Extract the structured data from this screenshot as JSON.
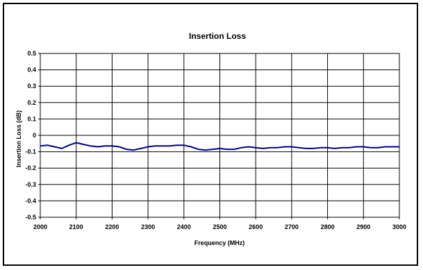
{
  "chart_data": {
    "type": "line",
    "title": "Insertion Loss",
    "xlabel": "Frequency (MHz)",
    "ylabel": "Insertion Loss (dB)",
    "xlim": [
      2000,
      3000
    ],
    "ylim": [
      -0.5,
      0.5
    ],
    "x_ticks": [
      "2000",
      "2100",
      "2200",
      "2300",
      "2400",
      "2500",
      "2600",
      "2700",
      "2800",
      "2900",
      "3000"
    ],
    "y_ticks": [
      "0.5",
      "0.4",
      "0.3",
      "0.2",
      "0.1",
      "0",
      "-0.1",
      "-0.2",
      "-0.3",
      "-0.4",
      "-0.5"
    ],
    "grid": true,
    "line_color": "#00008b",
    "series": [
      {
        "x": [
          2000,
          2020,
          2040,
          2060,
          2080,
          2100,
          2120,
          2140,
          2160,
          2180,
          2200,
          2220,
          2240,
          2260,
          2280,
          2300,
          2320,
          2340,
          2360,
          2380,
          2400,
          2420,
          2440,
          2460,
          2480,
          2500,
          2520,
          2540,
          2560,
          2580,
          2600,
          2620,
          2640,
          2660,
          2680,
          2700,
          2720,
          2740,
          2760,
          2780,
          2800,
          2820,
          2840,
          2860,
          2880,
          2900,
          2920,
          2940,
          2960,
          2980,
          3000
        ],
        "y": [
          -0.065,
          -0.06,
          -0.07,
          -0.08,
          -0.06,
          -0.045,
          -0.055,
          -0.065,
          -0.07,
          -0.065,
          -0.065,
          -0.07,
          -0.085,
          -0.09,
          -0.08,
          -0.07,
          -0.065,
          -0.065,
          -0.065,
          -0.06,
          -0.06,
          -0.07,
          -0.085,
          -0.09,
          -0.085,
          -0.08,
          -0.085,
          -0.085,
          -0.075,
          -0.07,
          -0.075,
          -0.08,
          -0.075,
          -0.075,
          -0.07,
          -0.07,
          -0.075,
          -0.08,
          -0.08,
          -0.075,
          -0.075,
          -0.08,
          -0.075,
          -0.075,
          -0.07,
          -0.07,
          -0.075,
          -0.075,
          -0.07,
          -0.07,
          -0.07
        ]
      }
    ]
  }
}
